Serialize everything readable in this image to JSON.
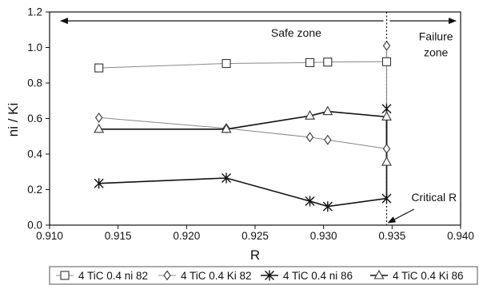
{
  "chart_data": {
    "type": "line",
    "title": "",
    "xlabel": "R",
    "ylabel": "ni / Ki",
    "xlim": [
      0.91,
      0.94
    ],
    "ylim": [
      0.0,
      1.2
    ],
    "x_ticks": [
      "0.910",
      "0.915",
      "0.920",
      "0.925",
      "0.930",
      "0.935",
      "0.940"
    ],
    "y_ticks": [
      "0.0",
      "0.2",
      "0.4",
      "0.6",
      "0.8",
      "1.0",
      "1.2"
    ],
    "grid": false,
    "legend_position": "bottom",
    "series": [
      {
        "name": "4 TiC 0.4 ni 82",
        "marker": "square",
        "line_color": "#888888",
        "points": [
          [
            0.9136,
            0.885
          ],
          [
            0.9229,
            0.91
          ],
          [
            0.929,
            0.915
          ],
          [
            0.9303,
            0.918
          ],
          [
            0.9346,
            0.92
          ]
        ]
      },
      {
        "name": "4 TiC 0.4 Ki 82",
        "marker": "diamond",
        "line_color": "#888888",
        "points": [
          [
            0.9136,
            0.605
          ],
          [
            0.9229,
            0.545
          ],
          [
            0.929,
            0.495
          ],
          [
            0.9303,
            0.48
          ],
          [
            0.9346,
            0.43
          ],
          [
            0.9346,
            1.01
          ]
        ]
      },
      {
        "name": "4 TiC 0.4 ni 86",
        "marker": "asterisk",
        "line_color": "#111111",
        "points": [
          [
            0.9136,
            0.235
          ],
          [
            0.9229,
            0.265
          ],
          [
            0.929,
            0.135
          ],
          [
            0.9303,
            0.105
          ],
          [
            0.9346,
            0.15
          ],
          [
            0.9346,
            0.655
          ]
        ]
      },
      {
        "name": "4 TiC 0.4 Ki 86",
        "marker": "triangle",
        "line_color": "#111111",
        "points": [
          [
            0.9136,
            0.54
          ],
          [
            0.9229,
            0.54
          ],
          [
            0.929,
            0.615
          ],
          [
            0.9303,
            0.64
          ],
          [
            0.9346,
            0.61
          ],
          [
            0.9346,
            0.355
          ]
        ]
      }
    ],
    "critical_r": 0.9346,
    "zone_arrow_y": 1.15,
    "annotations": {
      "safe_zone": "Safe zone",
      "failure_zone_line1": "Failure",
      "failure_zone_line2": "zone",
      "critical_r": "Critical R"
    }
  }
}
